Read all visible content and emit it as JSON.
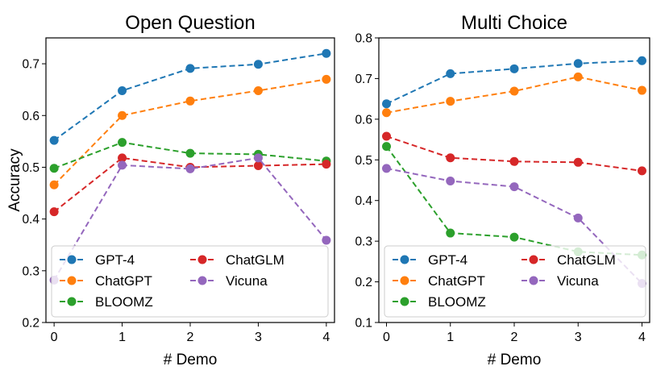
{
  "chart_data": [
    {
      "type": "line",
      "title": "Open Question",
      "xlabel": "# Demo",
      "ylabel": "Accuracy",
      "x": [
        0,
        1,
        2,
        3,
        4
      ],
      "xticks": [
        "0",
        "1",
        "2",
        "3",
        "4"
      ],
      "ylim": [
        0.2,
        0.75
      ],
      "yticks": [
        "0.2",
        "0.3",
        "0.4",
        "0.5",
        "0.6",
        "0.7"
      ],
      "legend_position": "bottom",
      "series": [
        {
          "name": "GPT-4",
          "color": "#1f77b4",
          "values": [
            0.552,
            0.648,
            0.691,
            0.699,
            0.72
          ]
        },
        {
          "name": "ChatGPT",
          "color": "#ff7f0e",
          "values": [
            0.466,
            0.6,
            0.628,
            0.648,
            0.67
          ]
        },
        {
          "name": "BLOOMZ",
          "color": "#2ca02c",
          "values": [
            0.498,
            0.548,
            0.527,
            0.525,
            0.512
          ]
        },
        {
          "name": "ChatGLM",
          "color": "#d62728",
          "values": [
            0.414,
            0.518,
            0.5,
            0.503,
            0.506
          ]
        },
        {
          "name": "Vicuna",
          "color": "#9467bd",
          "values": [
            0.282,
            0.504,
            0.497,
            0.518,
            0.359
          ]
        }
      ]
    },
    {
      "type": "line",
      "title": "Multi Choice",
      "xlabel": "# Demo",
      "ylabel": "",
      "x": [
        0,
        1,
        2,
        3,
        4
      ],
      "xticks": [
        "0",
        "1",
        "2",
        "3",
        "4"
      ],
      "ylim": [
        0.1,
        0.8
      ],
      "yticks": [
        "0.1",
        "0.2",
        "0.3",
        "0.4",
        "0.5",
        "0.6",
        "0.7",
        "0.8"
      ],
      "legend_position": "bottom",
      "series": [
        {
          "name": "GPT-4",
          "color": "#1f77b4",
          "values": [
            0.638,
            0.712,
            0.724,
            0.737,
            0.744
          ]
        },
        {
          "name": "ChatGPT",
          "color": "#ff7f0e",
          "values": [
            0.616,
            0.644,
            0.669,
            0.704,
            0.671
          ]
        },
        {
          "name": "BLOOMZ",
          "color": "#2ca02c",
          "values": [
            0.533,
            0.32,
            0.31,
            0.274,
            0.266
          ]
        },
        {
          "name": "ChatGLM",
          "color": "#d62728",
          "values": [
            0.558,
            0.505,
            0.496,
            0.494,
            0.473
          ]
        },
        {
          "name": "Vicuna",
          "color": "#9467bd",
          "values": [
            0.479,
            0.448,
            0.434,
            0.357,
            0.196
          ]
        }
      ]
    }
  ]
}
